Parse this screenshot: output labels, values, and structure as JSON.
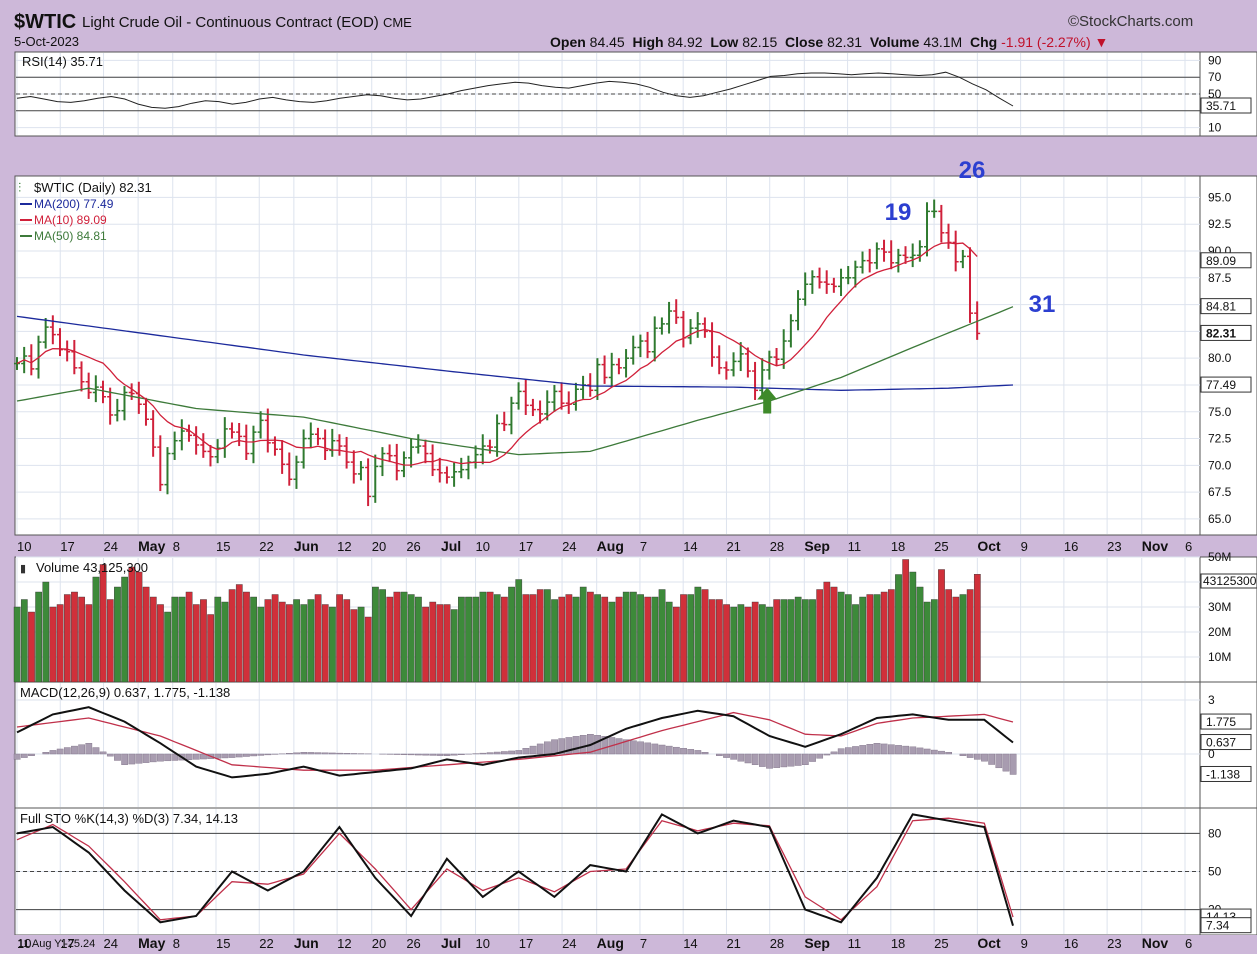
{
  "header": {
    "ticker": "$WTIC",
    "name": "Light Crude Oil - Continuous Contract (EOD)",
    "exchange": "CME",
    "date": "5-Oct-2023",
    "brand": "©StockCharts.com",
    "open_label": "Open",
    "open": "84.45",
    "high_label": "High",
    "high": "84.92",
    "low_label": "Low",
    "low": "82.15",
    "close_label": "Close",
    "close": "82.31",
    "volume_label": "Volume",
    "volume": "43.1M",
    "chg_label": "Chg",
    "chg": "-1.91 (-2.27%)"
  },
  "footer_note": "11 Aug Y:-25.24",
  "x_ticks": [
    "10",
    "17",
    "24",
    "May",
    "8",
    "15",
    "22",
    "Jun",
    "12",
    "20",
    "26",
    "Jul",
    "10",
    "17",
    "24",
    "Aug",
    "7",
    "14",
    "21",
    "28",
    "Sep",
    "11",
    "18",
    "25",
    "Oct",
    "9",
    "16",
    "23",
    "Nov",
    "6"
  ],
  "chart_data": [
    {
      "type": "line",
      "panel": "rsi",
      "legend": "RSI(14) 35.71",
      "ylim": [
        0,
        100
      ],
      "y_ticks": [
        "90",
        "70",
        "50",
        "10"
      ],
      "last_value": "35.71",
      "guides": [
        70,
        50,
        30
      ],
      "values": [
        45,
        47,
        44,
        41,
        40,
        42,
        45,
        47,
        44,
        38,
        34,
        33,
        35,
        39,
        42,
        41,
        38,
        40,
        44,
        46,
        43,
        41,
        40,
        42,
        45,
        47,
        49,
        48,
        45,
        43,
        44,
        47,
        50,
        54,
        57,
        60,
        62,
        64,
        63,
        60,
        58,
        57,
        60,
        63,
        65,
        64,
        62,
        58,
        52,
        48,
        46,
        48,
        52,
        56,
        61,
        66,
        71,
        72,
        74,
        75,
        75,
        74,
        73,
        74,
        75,
        74,
        73,
        72,
        73,
        76,
        70,
        62,
        55,
        45,
        35.71
      ]
    },
    {
      "type": "ohlc",
      "panel": "price",
      "legend": "$WTIC (Daily) 82.31",
      "ylim": [
        63.5,
        97
      ],
      "y_ticks": [
        "95.0",
        "92.5",
        "90.0",
        "87.5",
        "85.0",
        "82.5",
        "80.0",
        "77.5",
        "75.0",
        "72.5",
        "70.0",
        "67.5",
        "65.0"
      ],
      "last_value": "82.31",
      "closes": [
        79.5,
        80.2,
        79.0,
        81.5,
        82.9,
        82.2,
        80.8,
        80.6,
        79.1,
        77.8,
        76.8,
        77.3,
        76.4,
        74.7,
        75.1,
        76.8,
        76.7,
        75.7,
        74.3,
        71.7,
        68.2,
        71.1,
        72.3,
        73.2,
        72.8,
        71.9,
        71.3,
        70.8,
        71.6,
        73.4,
        73.1,
        72.7,
        71.1,
        73.1,
        74.2,
        72.1,
        71.5,
        70.1,
        68.7,
        70.3,
        72.5,
        72.9,
        72.5,
        71.4,
        72.3,
        71.8,
        70.3,
        69.2,
        69.8,
        67.1,
        69.9,
        71.1,
        70.9,
        69.5,
        70.7,
        71.7,
        71.8,
        71.1,
        69.6,
        69.3,
        68.9,
        69.4,
        69.6,
        70.3,
        71.0,
        71.8,
        71.7,
        73.9,
        73.8,
        75.8,
        76.9,
        75.6,
        75.2,
        74.8,
        75.9,
        76.9,
        75.8,
        75.7,
        77.1,
        77.5,
        77.0,
        79.4,
        78.2,
        79.4,
        79.1,
        80.0,
        81.0,
        81.6,
        80.6,
        82.8,
        83.2,
        84.4,
        83.8,
        81.9,
        82.8,
        83.2,
        82.5,
        80.1,
        79.1,
        78.9,
        79.7,
        80.4,
        78.8,
        77.0,
        78.9,
        80.1,
        79.9,
        81.6,
        83.5,
        85.5,
        86.9,
        87.6,
        87.1,
        86.9,
        86.7,
        87.5,
        87.5,
        88.5,
        89.1,
        88.9,
        90.2,
        89.9,
        88.9,
        89.6,
        89.4,
        89.6,
        90.4,
        93.7,
        93.7,
        91.7,
        90.8,
        89.0,
        89.5,
        84.2,
        82.31
      ],
      "moving_averages": [
        {
          "name": "MA(200) 77.49",
          "color": "#1c2a9c",
          "last_value": "77.49",
          "x": [
            0,
            20,
            40,
            60,
            80,
            100,
            115,
            130,
            139
          ],
          "values": [
            83.9,
            82.1,
            80.3,
            78.8,
            77.4,
            77.3,
            77.0,
            77.2,
            77.5
          ]
        },
        {
          "name": "MA(10) 89.09",
          "color": "#d0203a",
          "last_value": "89.09"
        },
        {
          "name": "MA(50) 84.81",
          "color": "#3d7a3a",
          "last_value": "84.81",
          "x": [
            0,
            10,
            25,
            40,
            55,
            70,
            80,
            95,
            105,
            115,
            125,
            139
          ],
          "values": [
            76.0,
            77.2,
            75.3,
            74.5,
            72.5,
            71.0,
            71.3,
            74.2,
            76.0,
            78.2,
            81.0,
            84.8
          ]
        }
      ],
      "annotations": [
        {
          "label": "19",
          "color": "#2c3fd0",
          "x_index": 122
        },
        {
          "label": "26",
          "color": "#2c3fd0",
          "x_index": 131
        },
        {
          "label": "31",
          "color": "#2c3fd0",
          "x_index": 139
        }
      ],
      "marker": {
        "x_index": 104,
        "color": "#3e8a2a",
        "shape": "up-arrow"
      }
    },
    {
      "type": "bar",
      "panel": "volume",
      "legend": "Volume 43,125,300",
      "ylim": [
        0,
        50
      ],
      "y_ticks": [
        "50M",
        "40M",
        "30M",
        "20M",
        "10M"
      ],
      "last_value": "43125300",
      "up_color": "#3d8a3a",
      "down_color": "#d0303a",
      "values": [
        30,
        33,
        28,
        36,
        40,
        30,
        31,
        35,
        36,
        34,
        31,
        42,
        47,
        33,
        38,
        42,
        46,
        44,
        38,
        34,
        31,
        28,
        34,
        34,
        36,
        31,
        33,
        27,
        34,
        32,
        37,
        39,
        36,
        34,
        30,
        33,
        35,
        32,
        31,
        33,
        31,
        33,
        35,
        31,
        30,
        35,
        33,
        29,
        30,
        26,
        38,
        37,
        34,
        36,
        36,
        35,
        34,
        30,
        32,
        31,
        31,
        29,
        34,
        34,
        34,
        36,
        36,
        35,
        34,
        38,
        41,
        35,
        35,
        37,
        37,
        33,
        34,
        35,
        34,
        38,
        36,
        35,
        34,
        32,
        34,
        36,
        36,
        35,
        34,
        34,
        37,
        32,
        30,
        35,
        35,
        38,
        37,
        33,
        33,
        31,
        30,
        31,
        30,
        32,
        31,
        30,
        33,
        33,
        33,
        34,
        33,
        33,
        37,
        40,
        38,
        36,
        35,
        31,
        34,
        35,
        35,
        36,
        37,
        43,
        49,
        44,
        38,
        32,
        33,
        45,
        37,
        34,
        35,
        37,
        43.1
      ]
    },
    {
      "type": "line",
      "panel": "macd",
      "legend": "MACD(12,26,9) 0.637, 1.775, -1.138",
      "ylim": [
        -3,
        4
      ],
      "y_ticks": [
        "3",
        "0"
      ],
      "labels": [
        "1.775",
        "0.637",
        "-1.138"
      ],
      "series": [
        {
          "name": "MACD(12,26,9)",
          "color": "#111111",
          "last_value": "0.637",
          "x": [
            0,
            5,
            10,
            15,
            20,
            25,
            30,
            35,
            40,
            45,
            50,
            55,
            60,
            65,
            70,
            75,
            80,
            85,
            90,
            95,
            100,
            105,
            110,
            115,
            120,
            125,
            130,
            135,
            139
          ],
          "values": [
            1.2,
            2.2,
            2.6,
            1.8,
            0.6,
            -0.7,
            -1.3,
            -1.1,
            -0.7,
            -1.2,
            -1.0,
            -0.8,
            -0.3,
            -0.6,
            -0.2,
            0.0,
            0.5,
            1.4,
            2.0,
            2.4,
            2.1,
            1.0,
            0.4,
            1.1,
            2.0,
            2.2,
            1.9,
            1.9,
            0.637
          ]
        },
        {
          "name": "signal",
          "color": "#c0304a",
          "last_value": "1.775",
          "x": [
            0,
            10,
            20,
            30,
            40,
            50,
            60,
            70,
            80,
            90,
            100,
            105,
            110,
            115,
            120,
            125,
            130,
            135,
            139
          ],
          "values": [
            1.5,
            2.0,
            1.0,
            -0.6,
            -0.9,
            -0.9,
            -0.6,
            -0.3,
            0.1,
            1.3,
            2.3,
            1.9,
            1.1,
            1.0,
            1.7,
            2.0,
            2.1,
            2.2,
            1.775
          ]
        }
      ],
      "histogram": {
        "color": "#a89cb0",
        "last_value": "-1.138",
        "x": [
          0,
          5,
          10,
          15,
          20,
          25,
          30,
          40,
          50,
          60,
          70,
          75,
          80,
          85,
          90,
          95,
          100,
          105,
          110,
          115,
          120,
          125,
          130,
          135,
          139
        ],
        "values": [
          -0.3,
          0.2,
          0.6,
          -0.6,
          -0.4,
          -0.3,
          -0.2,
          0.1,
          0.0,
          -0.1,
          0.2,
          0.8,
          1.1,
          0.8,
          0.5,
          0.2,
          -0.3,
          -0.8,
          -0.6,
          0.3,
          0.6,
          0.4,
          0.1,
          -0.4,
          -1.138
        ]
      }
    },
    {
      "type": "line",
      "panel": "stochastic",
      "legend": "Full STO %K(14,3) %D(3) 7.34, 14.13",
      "ylim": [
        0,
        100
      ],
      "y_ticks": [
        "80",
        "50",
        "20"
      ],
      "labels": [
        "14.13",
        "7.34"
      ],
      "guides": [
        80,
        50,
        20
      ],
      "series": [
        {
          "name": "%K(14,3)",
          "color": "#111111",
          "last_value": "7.34",
          "x": [
            0,
            5,
            10,
            15,
            20,
            25,
            30,
            35,
            40,
            45,
            50,
            55,
            60,
            65,
            70,
            75,
            80,
            85,
            90,
            95,
            100,
            105,
            110,
            115,
            120,
            125,
            130,
            135,
            139
          ],
          "values": [
            80,
            85,
            65,
            35,
            10,
            15,
            50,
            35,
            50,
            85,
            45,
            15,
            60,
            30,
            50,
            30,
            55,
            50,
            95,
            80,
            90,
            85,
            20,
            10,
            45,
            95,
            90,
            85,
            7.34
          ]
        },
        {
          "name": "%D(3)",
          "color": "#c0304a",
          "last_value": "14.13",
          "x": [
            0,
            5,
            10,
            15,
            20,
            25,
            30,
            35,
            40,
            45,
            50,
            55,
            60,
            65,
            70,
            75,
            80,
            85,
            90,
            95,
            100,
            105,
            110,
            115,
            120,
            125,
            130,
            135,
            139
          ],
          "values": [
            75,
            87,
            70,
            42,
            12,
            15,
            42,
            40,
            48,
            80,
            52,
            20,
            52,
            35,
            45,
            34,
            50,
            52,
            90,
            82,
            88,
            86,
            30,
            12,
            38,
            90,
            92,
            88,
            14.13
          ]
        }
      ]
    }
  ]
}
